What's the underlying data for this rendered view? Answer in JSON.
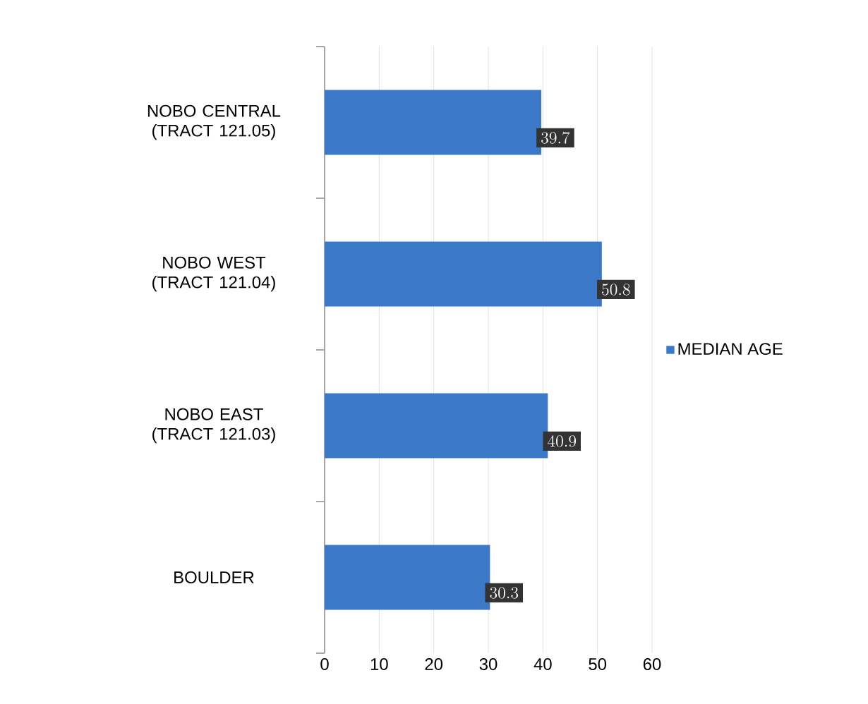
{
  "chart_data": {
    "type": "bar",
    "orientation": "horizontal",
    "categories": [
      "NOBO CENTRAL (TRACT 121.05)",
      "NOBO WEST (TRACT 121.04)",
      "NOBO EAST (TRACT 121.03)",
      "BOULDER"
    ],
    "series": [
      {
        "name": "MEDIAN AGE",
        "color": "#3b78c8",
        "values": [
          39.7,
          50.8,
          40.9,
          30.3
        ]
      }
    ],
    "xlim": [
      0,
      60
    ],
    "xticks": [
      0,
      10,
      20,
      30,
      40,
      50,
      60
    ],
    "grid": "x",
    "legend": "right",
    "data_labels": true
  }
}
